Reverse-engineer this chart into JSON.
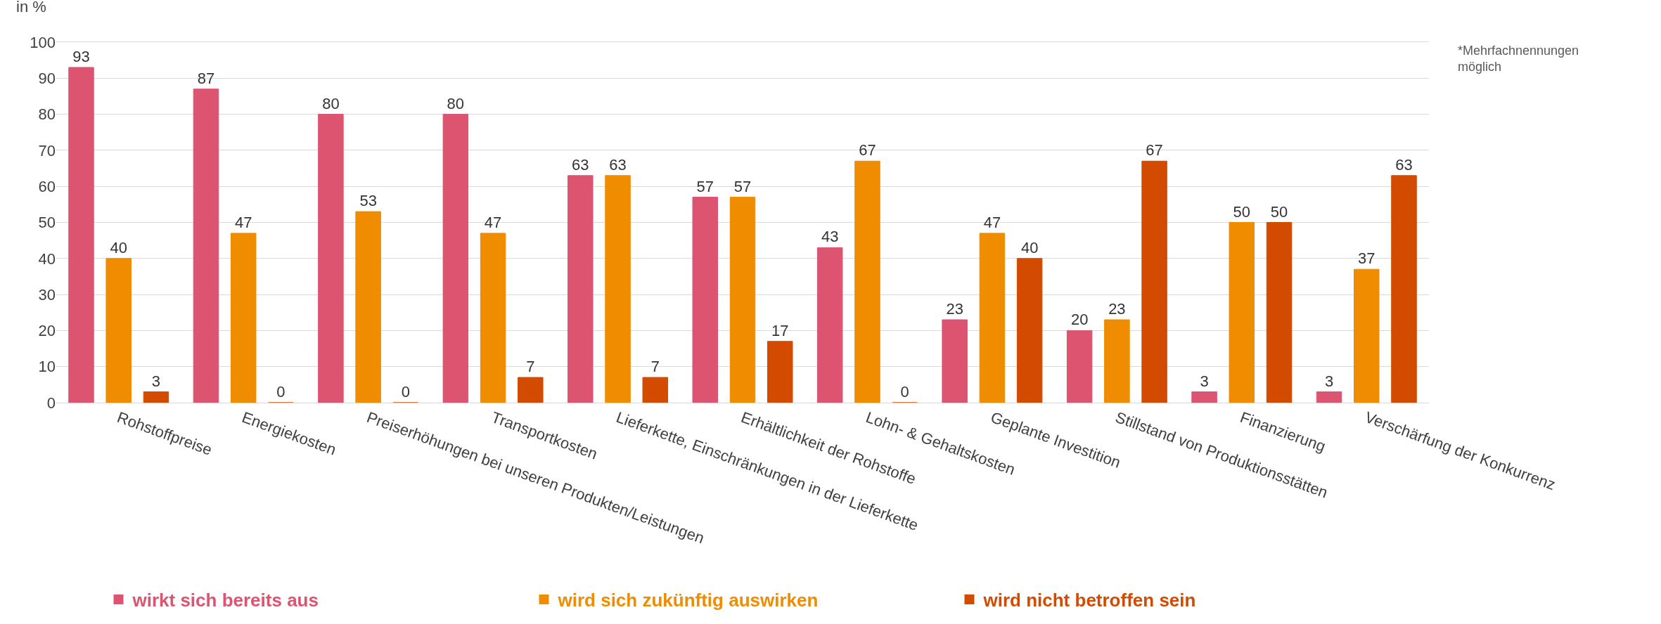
{
  "chart_data": {
    "type": "bar",
    "ylabel": "in %",
    "categories": [
      "Rohstoffpreise",
      "Energiekosten",
      "Preiserhöhungen bei unseren Produkten/Leistungen",
      "Transportkosten",
      "Lieferkette, Einschränkungen in der Lieferkette",
      "Erhältlichkeit der Rohstoffe",
      "Lohn- & Gehaltskosten",
      "Geplante Investition",
      "Stillstand von Produktionsstätten",
      "Finanzierung",
      "Verschärfung der Konkurrenz"
    ],
    "series": [
      {
        "name": "wirkt sich bereits aus",
        "color": "#dc5470",
        "values": [
          93,
          87,
          80,
          80,
          63,
          57,
          43,
          23,
          20,
          3,
          3
        ]
      },
      {
        "name": "wird sich zukünftig auswirken",
        "color": "#ef8c00",
        "values": [
          40,
          47,
          53,
          47,
          63,
          57,
          67,
          47,
          23,
          50,
          37
        ]
      },
      {
        "name": "wird nicht betroffen sein",
        "color": "#d24b00",
        "values": [
          3,
          0,
          0,
          7,
          7,
          17,
          0,
          40,
          67,
          50,
          63
        ]
      }
    ],
    "ylim": [
      0,
      100
    ],
    "yticks": [
      0,
      10,
      20,
      30,
      40,
      50,
      60,
      70,
      80,
      90,
      100
    ],
    "grid": "y",
    "legend": "bottom",
    "data_labels": true,
    "annotations": [
      "*Mehrfachnennungen möglich"
    ]
  }
}
